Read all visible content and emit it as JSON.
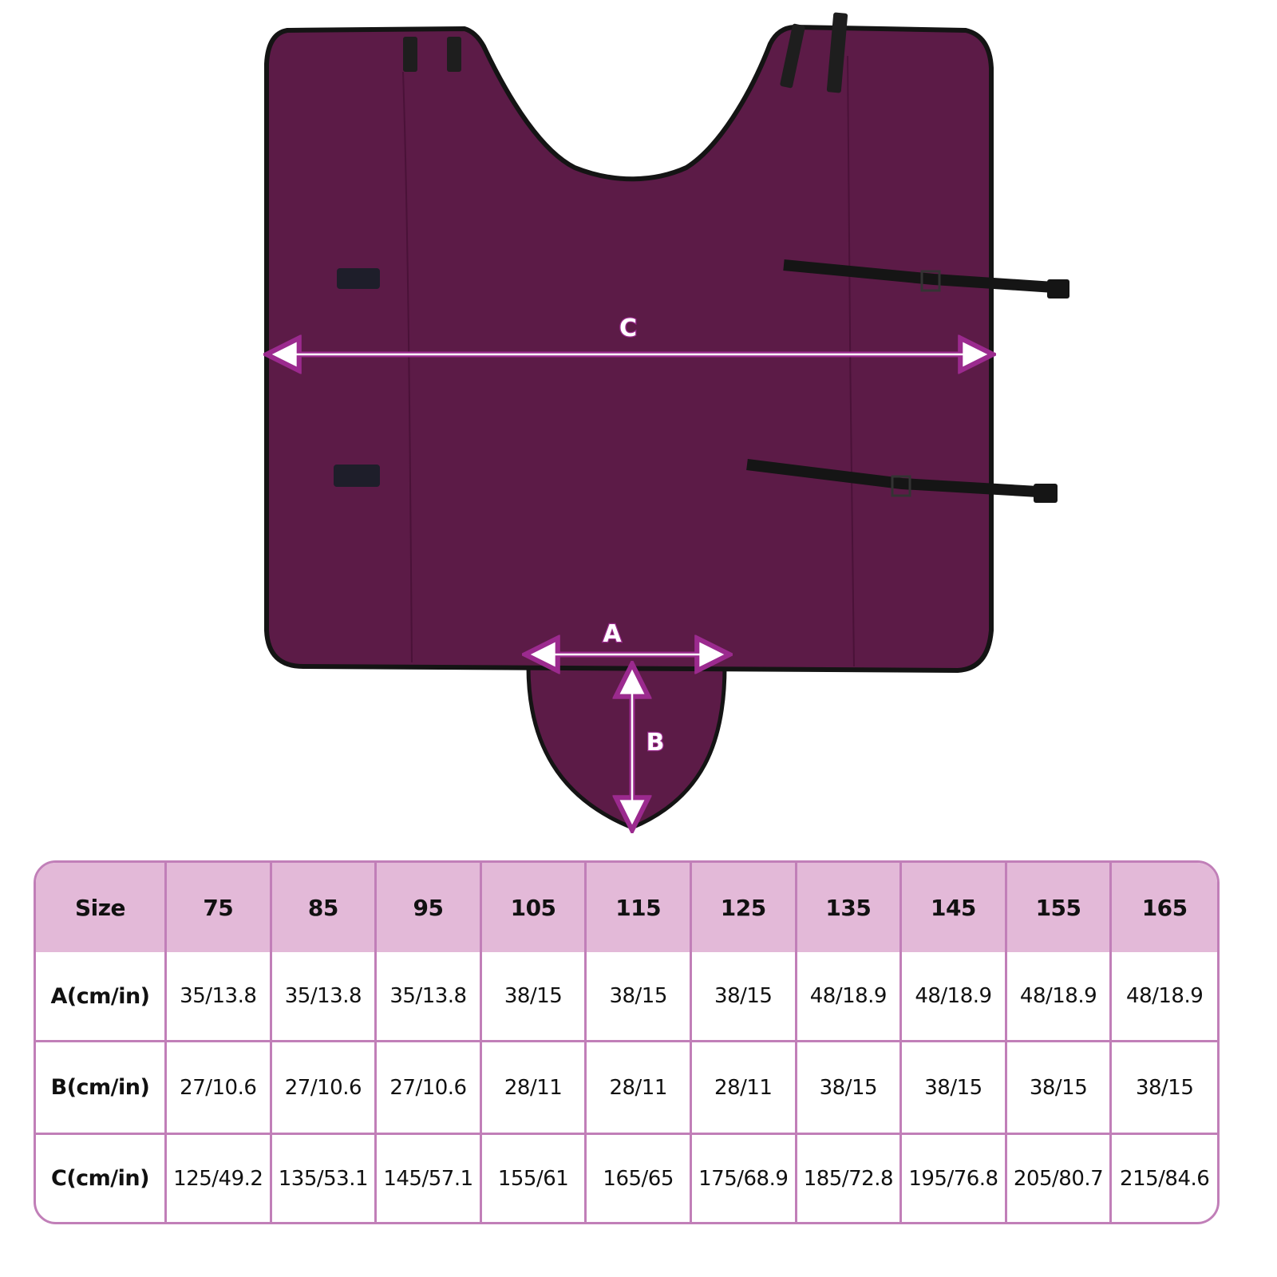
{
  "colors": {
    "blanket": "#5c1b47",
    "trim": "#141414",
    "arrow": "#9b2a8e",
    "table_header_bg": "#e3b9d8",
    "table_border": "#c17fb8"
  },
  "diagram": {
    "labels": {
      "a": "A",
      "b": "B",
      "c": "C"
    }
  },
  "size_table": {
    "header": [
      "Size",
      "75",
      "85",
      "95",
      "105",
      "115",
      "125",
      "135",
      "145",
      "155",
      "165"
    ],
    "rows": [
      {
        "label": "A(cm/in)",
        "values": [
          "35/13.8",
          "35/13.8",
          "35/13.8",
          "38/15",
          "38/15",
          "38/15",
          "48/18.9",
          "48/18.9",
          "48/18.9",
          "48/18.9"
        ]
      },
      {
        "label": "B(cm/in)",
        "values": [
          "27/10.6",
          "27/10.6",
          "27/10.6",
          "28/11",
          "28/11",
          "28/11",
          "38/15",
          "38/15",
          "38/15",
          "38/15"
        ]
      },
      {
        "label": "C(cm/in)",
        "values": [
          "125/49.2",
          "135/53.1",
          "145/57.1",
          "155/61",
          "165/65",
          "175/68.9",
          "185/72.8",
          "195/76.8",
          "205/80.7",
          "215/84.6"
        ]
      }
    ]
  }
}
